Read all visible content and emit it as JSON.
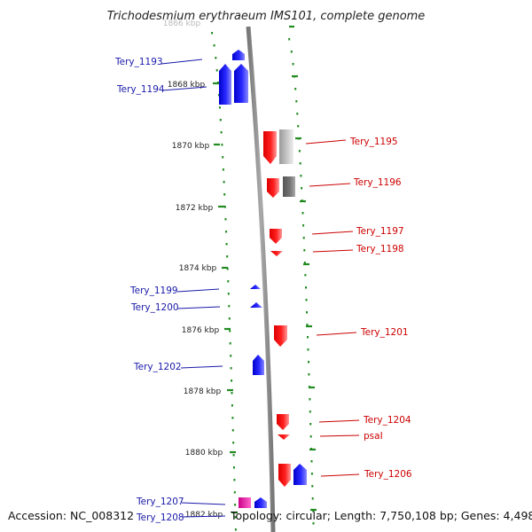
{
  "title": "Trichodesmium erythraeum IMS101, complete genome",
  "footer": {
    "accession": "Accession: NC_008312",
    "info": "Topology: circular; Length: 7,750,108 bp; Genes: 4,498"
  },
  "ticks": {
    "faint_top": "1866 kbp",
    "labels": [
      "1868 kbp",
      "1870 kbp",
      "1872 kbp",
      "1874 kbp",
      "1876 kbp",
      "1878 kbp",
      "1880 kbp",
      "1882 kbp"
    ]
  },
  "genes_left": [
    "Tery_1193",
    "Tery_1194",
    "Tery_1199",
    "Tery_1200",
    "Tery_1202",
    "Tery_1207",
    "Tery_1208"
  ],
  "genes_right": [
    "Tery_1195",
    "Tery_1196",
    "Tery_1197",
    "Tery_1198",
    "Tery_1201",
    "Tery_1204",
    "psaI",
    "Tery_1206"
  ],
  "colors": {
    "backbone": "#888888",
    "forward_strand": "#1a1aee",
    "reverse_strand": "#ee1111",
    "tick": "#228b22",
    "left_label": "#1a1aaa",
    "right_label": "#cc0000"
  }
}
